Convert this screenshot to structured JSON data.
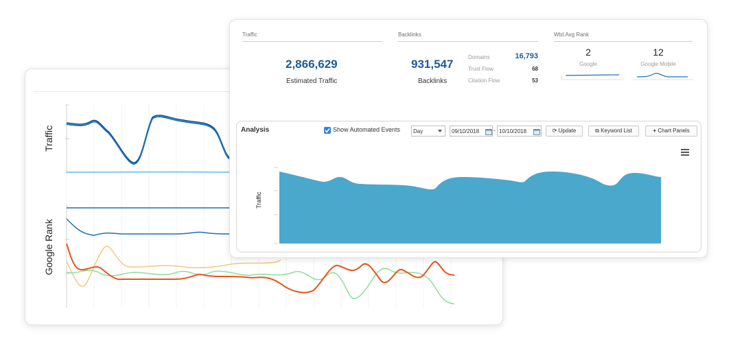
{
  "back_panel": {
    "traffic_axis_label": "Traffic",
    "rank_axis_label": "Google Rank"
  },
  "summary": {
    "traffic": {
      "section_title": "Traffic",
      "value": "2,866,629",
      "label": "Estimated Traffic"
    },
    "backlinks": {
      "section_title": "Backlinks",
      "value": "931,547",
      "label": "Backlinks",
      "stats": [
        {
          "label": "Domains",
          "value": "16,793"
        },
        {
          "label": "Trust Flow",
          "value": "68"
        },
        {
          "label": "Citation Flow",
          "value": "53"
        }
      ]
    },
    "rank": {
      "section_title": "Wtd.Avg Rank",
      "google_value": "2",
      "google_label": "Google",
      "mobile_value": "12",
      "mobile_label": "Google Mobile"
    }
  },
  "analysis": {
    "title": "Analysis",
    "show_events_label": "Show Automated Events",
    "show_events_checked": true,
    "interval_value": "Day",
    "date_from": "09/10/2018",
    "date_sep": "-",
    "date_to": "10/10/2018",
    "update_label": "Update",
    "keyword_list_label": "Keyword List",
    "chart_panels_label": "Chart Panels",
    "y_axis_label": "Traffic"
  },
  "colors": {
    "accent": "#1e5a96",
    "area_fill": "#4aa8cc",
    "line_dark": "#1d6fb5",
    "line_light": "#5bc0eb",
    "line_orange": "#e8541c",
    "line_yellow": "#f4c77a",
    "line_green": "#8fdc9a"
  },
  "icons": {
    "menu": "hamburger-menu-icon",
    "calendar": "calendar-icon",
    "refresh": "refresh-icon",
    "list": "list-icon",
    "plus": "plus-icon",
    "dropdown": "chevron-down-icon",
    "checkbox": "checkbox-checked-icon"
  }
}
